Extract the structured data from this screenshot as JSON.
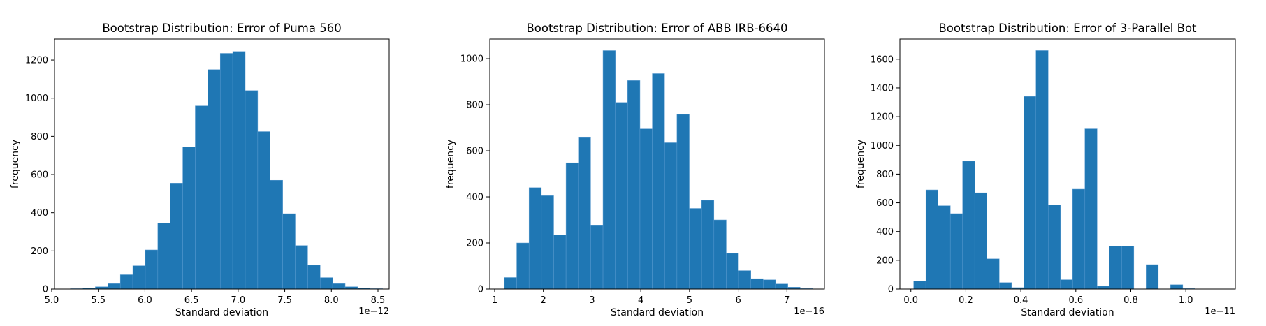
{
  "colors": {
    "bar": "#1f77b4",
    "bar_edge": "#5a9bd0",
    "axis": "#000000"
  },
  "chart_data": [
    {
      "type": "bar",
      "title": "Bootstrap Distribution: Error of Puma 560",
      "xlabel": "Standard deviation",
      "ylabel": "frequency",
      "x_offset_label": "1e−12",
      "xlim": [
        5.03,
        8.62
      ],
      "ylim": [
        0,
        1310
      ],
      "xticks": [
        5.0,
        5.5,
        6.0,
        6.5,
        7.0,
        7.5,
        8.0,
        8.5
      ],
      "xtick_labels": [
        "5.0",
        "5.5",
        "6.0",
        "6.5",
        "7.0",
        "7.5",
        "8.0",
        "8.5"
      ],
      "yticks": [
        0,
        200,
        400,
        600,
        800,
        1000,
        1200
      ],
      "ytick_labels": [
        "0",
        "200",
        "400",
        "600",
        "800",
        "1000",
        "1200"
      ],
      "bin_start": 5.2,
      "bin_width": 0.134,
      "values": [
        2,
        6,
        12,
        28,
        75,
        122,
        205,
        345,
        555,
        745,
        960,
        1150,
        1235,
        1245,
        1040,
        825,
        570,
        395,
        228,
        125,
        60,
        28,
        12,
        5,
        2
      ],
      "grid": false
    },
    {
      "type": "bar",
      "title": "Bootstrap Distribution: Error of ABB IRB-6640",
      "xlabel": "Standard deviation",
      "ylabel": "frequency",
      "x_offset_label": "1e−16",
      "xlim": [
        0.9,
        7.77
      ],
      "ylim": [
        0,
        1085
      ],
      "xticks": [
        1,
        2,
        3,
        4,
        5,
        6,
        7
      ],
      "xtick_labels": [
        "1",
        "2",
        "3",
        "4",
        "5",
        "6",
        "7"
      ],
      "yticks": [
        0,
        200,
        400,
        600,
        800,
        1000
      ],
      "ytick_labels": [
        "0",
        "200",
        "400",
        "600",
        "800",
        "1000"
      ],
      "bin_start": 1.2,
      "bin_width": 0.253,
      "values": [
        50,
        200,
        440,
        405,
        235,
        548,
        660,
        275,
        1035,
        810,
        905,
        695,
        935,
        635,
        758,
        350,
        385,
        300,
        155,
        80,
        45,
        40,
        22,
        8,
        2
      ],
      "grid": false
    },
    {
      "type": "bar",
      "title": "Bootstrap Distribution: Error of 3-Parallel Bot",
      "xlabel": "Standard deviation",
      "ylabel": "frequency",
      "x_offset_label": "1e−11",
      "xlim": [
        -0.04,
        1.18
      ],
      "ylim": [
        0,
        1740
      ],
      "xticks": [
        0.0,
        0.2,
        0.4,
        0.6,
        0.8,
        1.0
      ],
      "xtick_labels": [
        "0.0",
        "0.2",
        "0.4",
        "0.6",
        "0.8",
        "1.0"
      ],
      "yticks": [
        0,
        200,
        400,
        600,
        800,
        1000,
        1200,
        1400,
        1600
      ],
      "ytick_labels": [
        "0",
        "200",
        "400",
        "600",
        "800",
        "1000",
        "1200",
        "1400",
        "1600"
      ],
      "bin_start": 0.01,
      "bin_width": 0.0445,
      "values": [
        55,
        690,
        580,
        525,
        890,
        670,
        210,
        45,
        10,
        1340,
        1660,
        585,
        65,
        695,
        1115,
        20,
        300,
        300,
        0,
        170,
        0,
        30,
        3,
        1,
        0
      ],
      "grid": false
    }
  ]
}
